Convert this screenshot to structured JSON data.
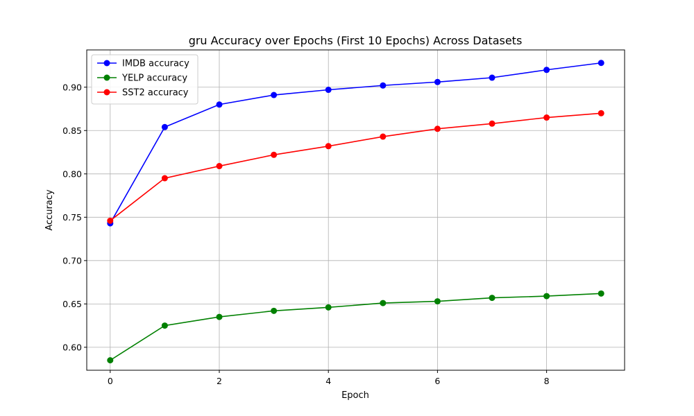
{
  "chart_data": {
    "type": "line",
    "title": "gru Accuracy over Epochs (First 10 Epochs) Across Datasets",
    "xlabel": "Epoch",
    "ylabel": "Accuracy",
    "x": [
      0,
      1,
      2,
      3,
      4,
      5,
      6,
      7,
      8,
      9
    ],
    "xlim": [
      -0.43,
      9.43
    ],
    "ylim": [
      0.5735,
      0.943
    ],
    "xticks": [
      0,
      2,
      4,
      6,
      8
    ],
    "xtick_labels": [
      "0",
      "2",
      "4",
      "6",
      "8"
    ],
    "yticks": [
      0.6,
      0.65,
      0.7,
      0.75,
      0.8,
      0.85,
      0.9
    ],
    "ytick_labels": [
      "0.60",
      "0.65",
      "0.70",
      "0.75",
      "0.80",
      "0.85",
      "0.90"
    ],
    "grid": true,
    "legend_position": "top-left",
    "series": [
      {
        "name": "IMDB accuracy",
        "color": "#0000ff",
        "values": [
          0.743,
          0.854,
          0.88,
          0.891,
          0.897,
          0.902,
          0.906,
          0.911,
          0.92,
          0.928
        ]
      },
      {
        "name": "YELP accuracy",
        "color": "#008000",
        "values": [
          0.585,
          0.625,
          0.635,
          0.642,
          0.646,
          0.651,
          0.653,
          0.657,
          0.659,
          0.662
        ]
      },
      {
        "name": "SST2 accuracy",
        "color": "#ff0000",
        "values": [
          0.746,
          0.795,
          0.809,
          0.822,
          0.832,
          0.843,
          0.852,
          0.858,
          0.865,
          0.87
        ]
      }
    ]
  }
}
